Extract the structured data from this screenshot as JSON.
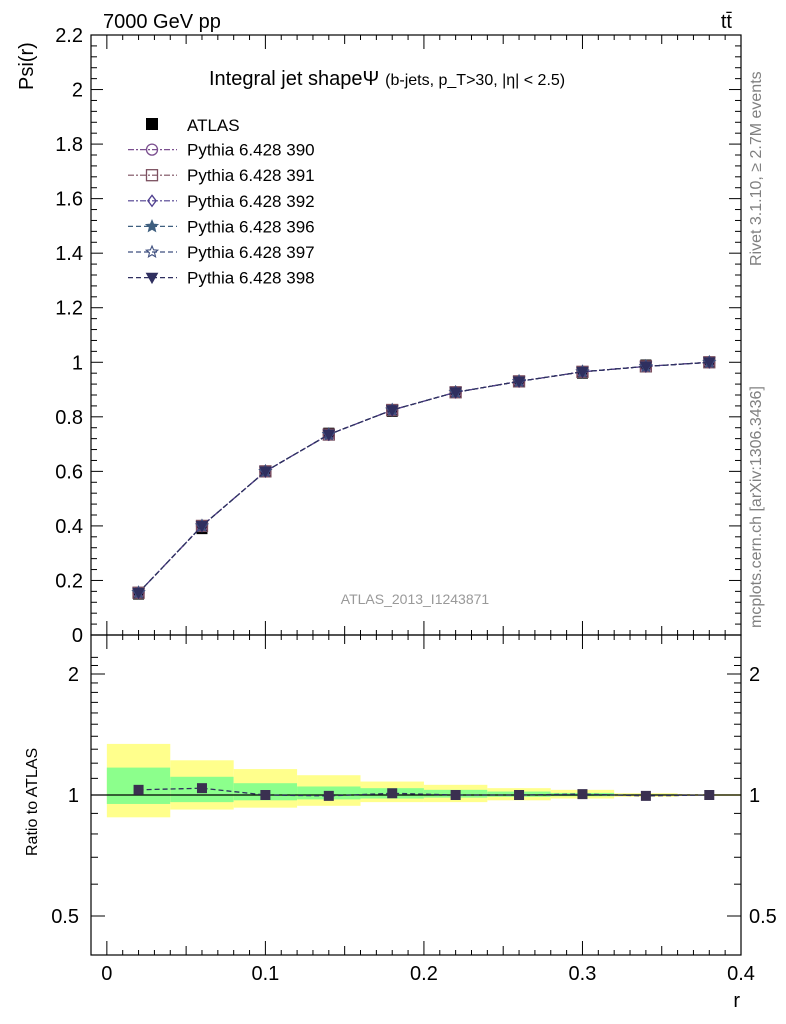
{
  "header": {
    "energy_label": "7000 GeV pp",
    "process_label": "tt̄"
  },
  "side": {
    "rivet_label": "Rivet 3.1.10, ≥ 2.7M events",
    "source_label": "mcplots.cern.ch [arXiv:1306.3436]"
  },
  "colors": {
    "yellow_band": "#ffff8c",
    "green_band": "#8cff8c",
    "series": [
      "#7b4f8f",
      "#7b4f5f",
      "#4f3f8f",
      "#3f5f7f",
      "#3f4f7f",
      "#2f2f5f"
    ]
  },
  "chart_data": [
    {
      "type": "line",
      "title": "Integral jet shapeΨ",
      "title_detail": "(b-jets, p_T>30, |η| < 2.5)",
      "watermark": "ATLAS_2013_I1243871",
      "ylabel": "Psi(r)",
      "xlim": [
        -0.01,
        0.4
      ],
      "ylim": [
        0,
        2.2
      ],
      "yticks": [
        0,
        0.2,
        0.4,
        0.6,
        0.8,
        1,
        1.2,
        1.4,
        1.6,
        1.8,
        2,
        2.2
      ],
      "ytick_labels": [
        "0",
        "0.2",
        "0.4",
        "0.6",
        "0.8",
        "1",
        "1.2",
        "1.4",
        "1.6",
        "1.8",
        "2",
        "2.2"
      ],
      "legend_position": "top-left",
      "x": [
        0.02,
        0.06,
        0.1,
        0.14,
        0.18,
        0.22,
        0.26,
        0.3,
        0.34,
        0.38
      ],
      "data": {
        "name": "ATLAS",
        "values": [
          0.15,
          0.39,
          0.6,
          0.74,
          0.82,
          0.89,
          0.93,
          0.96,
          0.99,
          1.0
        ]
      },
      "series": [
        {
          "name": "Pythia 6.428 390",
          "marker": "circle-open",
          "values": [
            0.155,
            0.4,
            0.6,
            0.735,
            0.825,
            0.89,
            0.93,
            0.965,
            0.985,
            1.0
          ]
        },
        {
          "name": "Pythia 6.428 391",
          "marker": "square-open",
          "values": [
            0.155,
            0.4,
            0.6,
            0.735,
            0.825,
            0.89,
            0.93,
            0.965,
            0.985,
            1.0
          ]
        },
        {
          "name": "Pythia 6.428 392",
          "marker": "diamond-open",
          "values": [
            0.155,
            0.4,
            0.6,
            0.735,
            0.825,
            0.89,
            0.93,
            0.965,
            0.985,
            1.0
          ]
        },
        {
          "name": "Pythia 6.428 396",
          "marker": "star-filled",
          "values": [
            0.155,
            0.4,
            0.6,
            0.735,
            0.825,
            0.89,
            0.93,
            0.965,
            0.985,
            1.0
          ]
        },
        {
          "name": "Pythia 6.428 397",
          "marker": "star-open",
          "values": [
            0.155,
            0.4,
            0.6,
            0.735,
            0.825,
            0.89,
            0.93,
            0.965,
            0.985,
            1.0
          ]
        },
        {
          "name": "Pythia 6.428 398",
          "marker": "triangle-down-filled",
          "values": [
            0.155,
            0.4,
            0.6,
            0.735,
            0.825,
            0.89,
            0.93,
            0.965,
            0.985,
            1.0
          ]
        }
      ]
    },
    {
      "type": "line",
      "ylabel": "Ratio to ATLAS",
      "xlabel": "r",
      "xlim": [
        -0.01,
        0.4
      ],
      "ylim": [
        0.4,
        2.3
      ],
      "xticks": [
        0,
        0.1,
        0.2,
        0.3,
        0.4
      ],
      "xtick_labels": [
        "0",
        "0.1",
        "0.2",
        "0.3",
        "0.4"
      ],
      "yticks": [
        0.5,
        1,
        2
      ],
      "ytick_labels": [
        "0.5",
        "1",
        "2"
      ],
      "bins": [
        [
          0.0,
          0.04
        ],
        [
          0.04,
          0.08
        ],
        [
          0.08,
          0.12
        ],
        [
          0.12,
          0.16
        ],
        [
          0.16,
          0.2
        ],
        [
          0.2,
          0.24
        ],
        [
          0.24,
          0.28
        ],
        [
          0.28,
          0.32
        ],
        [
          0.32,
          0.36
        ],
        [
          0.36,
          0.4
        ]
      ],
      "yellow_band": [
        [
          0.88,
          1.34
        ],
        [
          0.92,
          1.22
        ],
        [
          0.93,
          1.16
        ],
        [
          0.94,
          1.12
        ],
        [
          0.96,
          1.08
        ],
        [
          0.96,
          1.06
        ],
        [
          0.97,
          1.04
        ],
        [
          0.98,
          1.03
        ],
        [
          0.99,
          1.01
        ],
        [
          0.995,
          1.005
        ]
      ],
      "green_band": [
        [
          0.95,
          1.17
        ],
        [
          0.96,
          1.11
        ],
        [
          0.97,
          1.07
        ],
        [
          0.975,
          1.05
        ],
        [
          0.98,
          1.04
        ],
        [
          0.985,
          1.03
        ],
        [
          0.99,
          1.02
        ],
        [
          0.993,
          1.012
        ],
        [
          0.997,
          1.004
        ],
        [
          0.999,
          1.001
        ]
      ],
      "x": [
        0.02,
        0.06,
        0.1,
        0.14,
        0.18,
        0.22,
        0.26,
        0.3,
        0.34,
        0.38
      ],
      "ratio": [
        1.03,
        1.04,
        1.0,
        0.995,
        1.01,
        1.0,
        1.0,
        1.005,
        0.995,
        1.0
      ]
    }
  ]
}
